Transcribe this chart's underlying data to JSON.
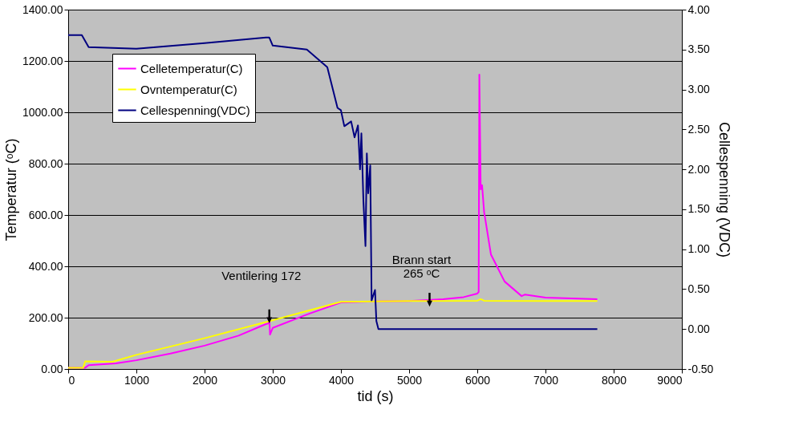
{
  "chart_data": {
    "type": "line",
    "xlabel": "tid (s)",
    "ylabel": "Temperatur (ᵒC)",
    "y2label": "Cellespenning (VDC)",
    "xlim": [
      0,
      9000
    ],
    "xticks": [
      0,
      1000,
      2000,
      3000,
      4000,
      5000,
      6000,
      7000,
      8000,
      9000
    ],
    "ylim": [
      0,
      1400
    ],
    "yticks": [
      {
        "value": 0,
        "label": "0.00"
      },
      {
        "value": 200,
        "label": "200.00"
      },
      {
        "value": 400,
        "label": "400.00"
      },
      {
        "value": 600,
        "label": "600.00"
      },
      {
        "value": 800,
        "label": "800.00"
      },
      {
        "value": 1000,
        "label": "1000.00"
      },
      {
        "value": 1200,
        "label": "1200.00"
      },
      {
        "value": 1400,
        "label": "1400.00"
      }
    ],
    "y2lim": [
      -0.5,
      4.0
    ],
    "y2ticks": [
      {
        "value": -0.5,
        "label": "-0.50"
      },
      {
        "value": 0,
        "label": "0.00"
      },
      {
        "value": 0.5,
        "label": "0.50"
      },
      {
        "value": 1,
        "label": "1.00"
      },
      {
        "value": 1.5,
        "label": "1.50"
      },
      {
        "value": 2,
        "label": "2.00"
      },
      {
        "value": 2.5,
        "label": "2.50"
      },
      {
        "value": 3,
        "label": "3.00"
      },
      {
        "value": 3.5,
        "label": "3.50"
      },
      {
        "value": 4,
        "label": "4.00"
      }
    ],
    "grid": "y",
    "legend": "top left",
    "line_style": "solid",
    "marker": "none",
    "series": [
      {
        "name": "Celletemperatur(C)",
        "color": "#ff00ff",
        "x": [
          0,
          250,
          300,
          700,
          1000,
          1500,
          2000,
          2500,
          2900,
          2940,
          2950,
          2960,
          3000,
          3500,
          4000,
          4500,
          5000,
          5500,
          5800,
          6000,
          6020,
          6030,
          6050,
          6070,
          6100,
          6200,
          6400,
          6650,
          6700,
          7000,
          7760
        ],
        "values": [
          5,
          5,
          15,
          22,
          34,
          60,
          91,
          130,
          175,
          178,
          205,
          134,
          160,
          212,
          259,
          263,
          265,
          272,
          280,
          294,
          300,
          1147,
          700,
          716,
          612,
          446,
          341,
          284,
          290,
          278,
          272
        ]
      },
      {
        "name": "Ovntemperatur(C)",
        "color": "#ffff00",
        "x": [
          0,
          220,
          250,
          650,
          1000,
          2000,
          3000,
          4000,
          5000,
          6000,
          6050,
          6100,
          7000,
          7760
        ],
        "values": [
          5,
          5,
          30,
          28,
          55,
          120,
          190,
          262,
          265,
          266,
          272,
          266,
          265,
          265
        ]
      },
      {
        "name": "Cellespenning(VDC)",
        "color": "#000080",
        "axis": "y2",
        "x": [
          0,
          200,
          300,
          1000,
          2000,
          2900,
          2950,
          3000,
          3500,
          3800,
          3950,
          4000,
          4050,
          4150,
          4200,
          4250,
          4280,
          4300,
          4330,
          4360,
          4380,
          4400,
          4430,
          4450,
          4500,
          4520,
          4550,
          5000,
          6000,
          7000,
          7760
        ],
        "values": [
          3.68,
          3.68,
          3.53,
          3.51,
          3.58,
          3.65,
          3.65,
          3.55,
          3.5,
          3.28,
          2.77,
          2.74,
          2.54,
          2.6,
          2.4,
          2.55,
          2.0,
          2.45,
          1.6,
          1.04,
          2.2,
          1.7,
          2.05,
          0.36,
          0.49,
          0.1,
          0.0,
          0.0,
          0.0,
          0.0,
          0.0
        ]
      }
    ],
    "annotations": [
      {
        "text": "Ventilering 172",
        "x": 2950,
        "y": 205
      },
      {
        "text": "Brann start\n265 ᵒC",
        "x": 5300,
        "y": 270
      }
    ]
  }
}
